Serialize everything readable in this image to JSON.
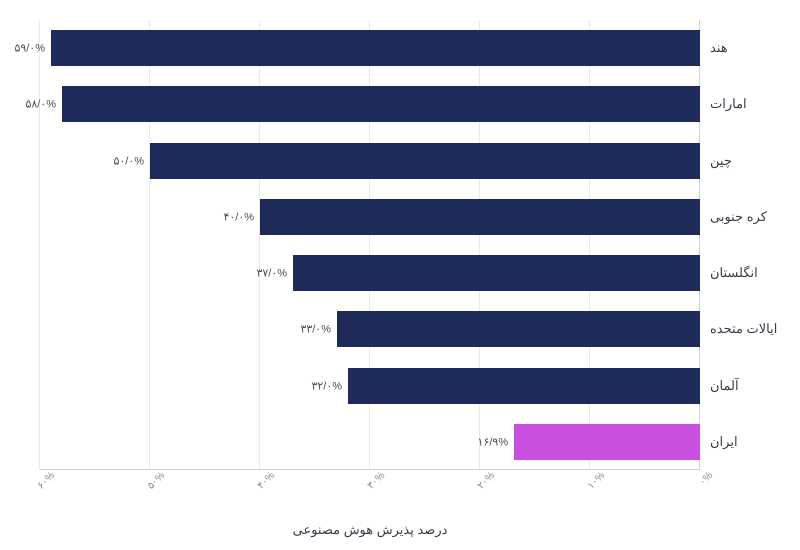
{
  "chart": {
    "type": "horizontal-bar",
    "direction": "rtl",
    "x_axis_title": "درصد پذیرش هوش مصنوعی",
    "x_min": 0,
    "x_max": 60,
    "x_tick_step": 10,
    "x_ticks": [
      {
        "v": 0,
        "label": "۰%"
      },
      {
        "v": 10,
        "label": "۱۰%"
      },
      {
        "v": 20,
        "label": "۲۰%"
      },
      {
        "v": 30,
        "label": "۳۰%"
      },
      {
        "v": 40,
        "label": "۴۰%"
      },
      {
        "v": 50,
        "label": "۵۰%"
      },
      {
        "v": 60,
        "label": "۶۰%"
      }
    ],
    "bar_default_color": "#1e2a5a",
    "bar_highlight_color": "#c84fe0",
    "grid_color": "#e8e8ee",
    "axis_line_color": "#cfcfd8",
    "background_color": "#ffffff",
    "label_fontsize": 13,
    "value_fontsize": 11,
    "title_fontsize": 13,
    "bars": [
      {
        "country": "هند",
        "value": 59.0,
        "label": "۵۹/۰%",
        "color": "#1e2a5a"
      },
      {
        "country": "امارات",
        "value": 58.0,
        "label": "۵۸/۰%",
        "color": "#1e2a5a"
      },
      {
        "country": "چین",
        "value": 50.0,
        "label": "۵۰/۰%",
        "color": "#1e2a5a"
      },
      {
        "country": "کره جنوبی",
        "value": 40.0,
        "label": "۴۰/۰%",
        "color": "#1e2a5a"
      },
      {
        "country": "انگلستان",
        "value": 37.0,
        "label": "۳۷/۰%",
        "color": "#1e2a5a"
      },
      {
        "country": "ایالات متحده",
        "value": 33.0,
        "label": "۳۳/۰%",
        "color": "#1e2a5a"
      },
      {
        "country": "آلمان",
        "value": 32.0,
        "label": "۳۲/۰%",
        "color": "#1e2a5a"
      },
      {
        "country": "ایران",
        "value": 16.9,
        "label": "۱۶/۹%",
        "color": "#c84fe0"
      }
    ]
  }
}
